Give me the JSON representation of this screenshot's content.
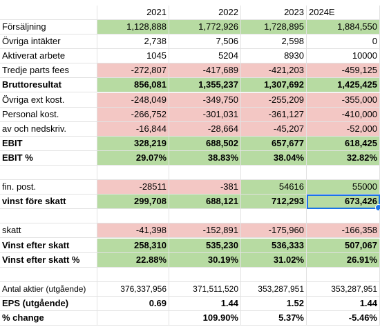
{
  "header": {
    "label": "",
    "years": [
      "2021",
      "2022",
      "2023",
      "2024E"
    ]
  },
  "rows": [
    {
      "label": "Försäljning",
      "values": [
        "1,128,888",
        "1,772,926",
        "1,728,895",
        "1,884,550"
      ],
      "fill": [
        "green",
        "green",
        "green",
        "green"
      ],
      "bold": false
    },
    {
      "label": "Övriga intäkter",
      "values": [
        "2,738",
        "7,506",
        "2,598",
        "0"
      ],
      "fill": [
        "",
        "",
        "",
        ""
      ],
      "bold": false
    },
    {
      "label": "Aktiverat arbete",
      "values": [
        "1045",
        "5204",
        "8930",
        "10000"
      ],
      "fill": [
        "",
        "",
        "",
        ""
      ],
      "bold": false
    },
    {
      "label": "Tredje parts fees",
      "values": [
        "-272,807",
        "-417,689",
        "-421,203",
        "-459,125"
      ],
      "fill": [
        "red",
        "red",
        "red",
        "red"
      ],
      "bold": false
    },
    {
      "label": "Bruttoresultat",
      "values": [
        "856,081",
        "1,355,237",
        "1,307,692",
        "1,425,425"
      ],
      "fill": [
        "green",
        "green",
        "green",
        "green"
      ],
      "bold": true
    },
    {
      "label": "Övriga ext kost.",
      "values": [
        "-248,049",
        "-349,750",
        "-255,209",
        "-355,000"
      ],
      "fill": [
        "red",
        "red",
        "red",
        "red"
      ],
      "bold": false
    },
    {
      "label": "Personal kost.",
      "values": [
        "-266,752",
        "-301,031",
        "-361,127",
        "-410,000"
      ],
      "fill": [
        "red",
        "red",
        "red",
        "red"
      ],
      "bold": false
    },
    {
      "label": "av och nedskriv.",
      "values": [
        "-16,844",
        "-28,664",
        "-45,207",
        "-52,000"
      ],
      "fill": [
        "red",
        "red",
        "red",
        "red"
      ],
      "bold": false
    },
    {
      "label": "EBIT",
      "values": [
        "328,219",
        "688,502",
        "657,677",
        "618,425"
      ],
      "fill": [
        "green",
        "green",
        "green",
        "green"
      ],
      "bold": true
    },
    {
      "label": "EBIT %",
      "values": [
        "29.07%",
        "38.83%",
        "38.04%",
        "32.82%"
      ],
      "fill": [
        "green",
        "green",
        "green",
        "green"
      ],
      "bold": true
    },
    {
      "label": "",
      "values": [
        "",
        "",
        "",
        ""
      ],
      "fill": [
        "",
        "",
        "",
        ""
      ],
      "bold": false
    },
    {
      "label": "fin. post.",
      "values": [
        "-28511",
        "-381",
        "54616",
        "55000"
      ],
      "fill": [
        "red",
        "red",
        "green",
        "green"
      ],
      "bold": false
    },
    {
      "label": "vinst före skatt",
      "values": [
        "299,708",
        "688,121",
        "712,293",
        "673,426"
      ],
      "fill": [
        "green",
        "green",
        "green",
        "green"
      ],
      "bold": true,
      "selected_col": 3
    },
    {
      "label": "",
      "values": [
        "",
        "",
        "",
        ""
      ],
      "fill": [
        "",
        "",
        "",
        ""
      ],
      "bold": false
    },
    {
      "label": "skatt",
      "values": [
        "-41,398",
        "-152,891",
        "-175,960",
        "-166,358"
      ],
      "fill": [
        "red",
        "red",
        "red",
        "red"
      ],
      "bold": false
    },
    {
      "label": "Vinst efter skatt",
      "values": [
        "258,310",
        "535,230",
        "536,333",
        "507,067"
      ],
      "fill": [
        "green",
        "green",
        "green",
        "green"
      ],
      "bold": true
    },
    {
      "label": "Vinst efter skatt %",
      "values": [
        "22.88%",
        "30.19%",
        "31.02%",
        "26.91%"
      ],
      "fill": [
        "green",
        "green",
        "green",
        "green"
      ],
      "bold": true
    },
    {
      "label": "",
      "values": [
        "",
        "",
        "",
        ""
      ],
      "fill": [
        "",
        "",
        "",
        ""
      ],
      "bold": false
    },
    {
      "label": "Antal aktier (utgående)",
      "values": [
        "376,337,956",
        "371,511,520",
        "353,287,951",
        "353,287,951"
      ],
      "fill": [
        "",
        "",
        "",
        ""
      ],
      "bold": false,
      "small": true
    },
    {
      "label": "EPS (utgående)",
      "values": [
        "0.69",
        "1.44",
        "1.52",
        "1.44"
      ],
      "fill": [
        "",
        "",
        "",
        ""
      ],
      "bold": true
    },
    {
      "label": "% change",
      "values": [
        "",
        "109.90%",
        "5.37%",
        "-5.46%"
      ],
      "fill": [
        "",
        "",
        "",
        ""
      ],
      "bold": true
    }
  ]
}
